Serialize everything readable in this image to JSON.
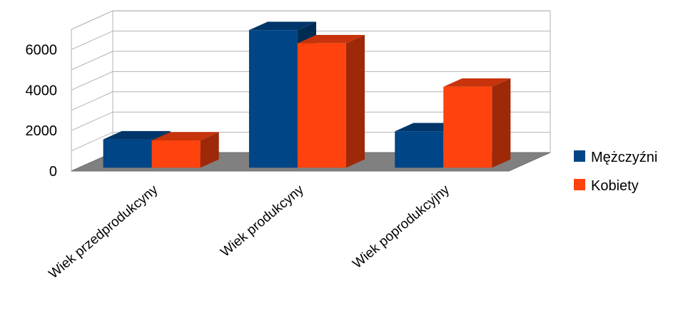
{
  "chart_data": {
    "type": "bar",
    "title": "",
    "xlabel": "",
    "ylabel": "",
    "categories": [
      "Wiek przedprodukcyny",
      "Wiek produkcyny",
      "Wiek poprodukcyjny"
    ],
    "series": [
      {
        "name": "Mężczyźni",
        "color": "#004586",
        "values": [
          1400,
          6800,
          1800
        ]
      },
      {
        "name": "Kobiety",
        "color": "#ff420e",
        "values": [
          1350,
          6150,
          4000
        ]
      }
    ],
    "ylim": [
      0,
      7000
    ],
    "yticks": [
      "0",
      "2000",
      "4000",
      "6000"
    ],
    "grid": true,
    "legend_position": "right",
    "style": "3d"
  }
}
